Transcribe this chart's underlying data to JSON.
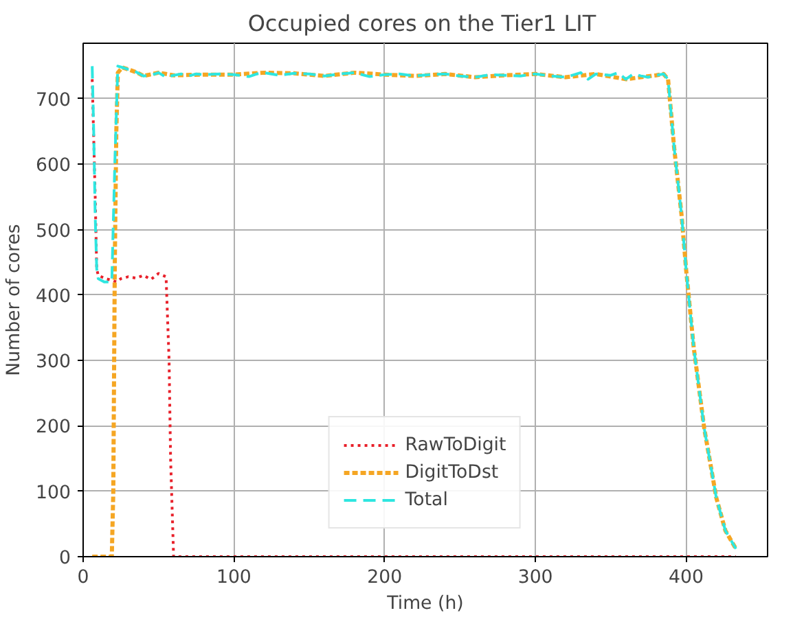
{
  "chart_data": {
    "type": "line",
    "title": "Occupied cores on the Tier1  LIT",
    "xlabel": "Time (h)",
    "ylabel": "Number of cores",
    "xlim": [
      0,
      454
    ],
    "ylim": [
      0,
      785
    ],
    "xticks": [
      0,
      100,
      200,
      300,
      400
    ],
    "yticks": [
      0,
      100,
      200,
      300,
      400,
      500,
      600,
      700
    ],
    "grid": true,
    "legend": "bottom",
    "marker": "none",
    "series": [
      {
        "name": "RawToDigit",
        "color": "#e8202a",
        "line_style": "dotted",
        "x": [
          6,
          8,
          9,
          10,
          15,
          20,
          22,
          25,
          30,
          35,
          40,
          45,
          50,
          55,
          57,
          58,
          60,
          100,
          200,
          300,
          400,
          433
        ],
        "values": [
          730,
          550,
          440,
          430,
          425,
          422,
          420,
          425,
          428,
          426,
          430,
          424,
          433,
          428,
          300,
          150,
          0,
          0,
          0,
          0,
          0,
          0
        ]
      },
      {
        "name": "DigitToDst",
        "color": "#f5a623",
        "line_style": "dashed",
        "x": [
          6,
          19,
          20,
          21,
          22,
          23,
          26,
          30,
          36,
          40,
          50,
          60,
          80,
          100,
          120,
          140,
          160,
          180,
          200,
          220,
          240,
          260,
          280,
          300,
          320,
          340,
          360,
          380,
          385,
          388,
          392,
          397,
          400,
          405,
          412,
          420,
          426,
          433
        ],
        "values": [
          0,
          0,
          100,
          450,
          650,
          740,
          748,
          745,
          740,
          735,
          740,
          736,
          737,
          737,
          740,
          739,
          735,
          740,
          737,
          735,
          738,
          733,
          736,
          738,
          733,
          738,
          730,
          736,
          738,
          730,
          626,
          521,
          438,
          320,
          196,
          90,
          40,
          12
        ]
      },
      {
        "name": "Total",
        "color": "#2ee6e0",
        "line_style": "dashed",
        "x": [
          6,
          7,
          8,
          9,
          10,
          14,
          19,
          21,
          23,
          26,
          30,
          33,
          36,
          40,
          45,
          50,
          55,
          60,
          65,
          70,
          75,
          80,
          90,
          100,
          110,
          115,
          120,
          130,
          140,
          150,
          160,
          170,
          180,
          190,
          200,
          210,
          220,
          230,
          240,
          250,
          260,
          270,
          280,
          290,
          300,
          310,
          320,
          330,
          335,
          340,
          350,
          355,
          360,
          365,
          370,
          375,
          380,
          385,
          388,
          392,
          397,
          400,
          405,
          412,
          420,
          426,
          433
        ],
        "values": [
          750,
          650,
          520,
          440,
          425,
          420,
          420,
          600,
          750,
          748,
          745,
          744,
          740,
          735,
          736,
          740,
          733,
          736,
          738,
          735,
          738,
          737,
          738,
          737,
          734,
          738,
          740,
          736,
          739,
          738,
          735,
          738,
          740,
          734,
          737,
          738,
          735,
          737,
          738,
          735,
          733,
          737,
          736,
          735,
          738,
          735,
          733,
          740,
          730,
          738,
          736,
          740,
          730,
          738,
          735,
          733,
          736,
          738,
          730,
          626,
          521,
          438,
          320,
          196,
          90,
          40,
          12
        ]
      }
    ]
  }
}
